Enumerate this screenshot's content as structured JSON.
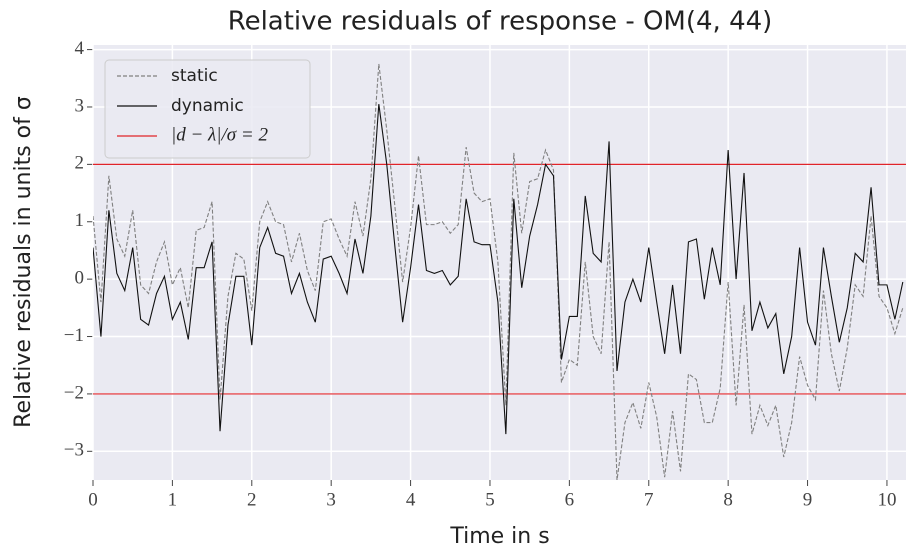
{
  "chart_data": {
    "type": "line",
    "title": "Relative residuals of response - OM(4, 44)",
    "x_label": "Time in s",
    "y_label": "Relative residuals in units of σ",
    "x": [
      0,
      0.1,
      0.2,
      0.3,
      0.4,
      0.5,
      0.6,
      0.7,
      0.8,
      0.9,
      1,
      1.1,
      1.2,
      1.3,
      1.4,
      1.5,
      1.6,
      1.7,
      1.8,
      1.9,
      2,
      2.1,
      2.2,
      2.3,
      2.4,
      2.5,
      2.6,
      2.7,
      2.8,
      2.9,
      3,
      3.1,
      3.2,
      3.3,
      3.4,
      3.5,
      3.6,
      3.7,
      3.8,
      3.9,
      4,
      4.1,
      4.2,
      4.3,
      4.4,
      4.5,
      4.6,
      4.7,
      4.8,
      4.9,
      5,
      5.1,
      5.2,
      5.3,
      5.4,
      5.5,
      5.6,
      5.7,
      5.8,
      5.9,
      6,
      6.1,
      6.2,
      6.3,
      6.4,
      6.5,
      6.6,
      6.7,
      6.8,
      6.9,
      7,
      7.1,
      7.2,
      7.3,
      7.4,
      7.5,
      7.6,
      7.7,
      7.8,
      7.9,
      8,
      8.1,
      8.2,
      8.3,
      8.4,
      8.5,
      8.6,
      8.7,
      8.8,
      8.9,
      9,
      9.1,
      9.2,
      9.3,
      9.4,
      9.5,
      9.6,
      9.7,
      9.8,
      9.9,
      10,
      10.1,
      10.2
    ],
    "series": [
      {
        "name": "static",
        "color": "#808080",
        "dash": true,
        "values": [
          1.1,
          -0.4,
          1.8,
          0.7,
          0.4,
          1.2,
          -0.1,
          -0.25,
          0.3,
          0.65,
          -0.1,
          0.2,
          -0.5,
          0.85,
          0.9,
          1.35,
          -2.1,
          -0.3,
          0.45,
          0.35,
          -0.55,
          1.0,
          1.35,
          1.0,
          0.95,
          0.3,
          0.8,
          0.15,
          -0.2,
          1.0,
          1.05,
          0.7,
          0.4,
          1.35,
          0.75,
          1.75,
          3.75,
          2.6,
          1.3,
          -0.05,
          0.9,
          2.15,
          0.95,
          0.95,
          1.0,
          0.8,
          0.95,
          2.3,
          1.5,
          1.35,
          1.4,
          0.3,
          -2.2,
          2.2,
          0.8,
          1.7,
          1.75,
          2.25,
          1.9,
          -1.8,
          -1.4,
          -1.5,
          0.3,
          -1.0,
          -1.3,
          0.65,
          -3.5,
          -2.5,
          -2.15,
          -2.6,
          -1.8,
          -2.4,
          -3.45,
          -2.3,
          -3.35,
          -1.65,
          -1.75,
          -2.5,
          -2.5,
          -1.9,
          -0.05,
          -2.2,
          -0.45,
          -2.7,
          -2.2,
          -2.55,
          -2.2,
          -3.1,
          -2.5,
          -1.35,
          -1.85,
          -2.1,
          -0.2,
          -1.3,
          -1.95,
          -1.2,
          -0.1,
          -0.3,
          1.1,
          -0.3,
          -0.5,
          -0.95,
          -0.5
        ]
      },
      {
        "name": "dynamic",
        "color": "#111111",
        "dash": false,
        "values": [
          0.55,
          -1.0,
          1.2,
          0.1,
          -0.2,
          0.55,
          -0.7,
          -0.8,
          -0.25,
          0.05,
          -0.7,
          -0.4,
          -1.05,
          0.2,
          0.2,
          0.65,
          -2.65,
          -0.8,
          0.05,
          0.05,
          -1.15,
          0.55,
          0.9,
          0.45,
          0.4,
          -0.25,
          0.1,
          -0.4,
          -0.75,
          0.35,
          0.4,
          0.1,
          -0.25,
          0.7,
          0.1,
          1.1,
          3.05,
          2.0,
          0.6,
          -0.75,
          0.2,
          1.3,
          0.15,
          0.1,
          0.15,
          -0.1,
          0.05,
          1.4,
          0.65,
          0.6,
          0.6,
          -0.4,
          -2.7,
          1.4,
          -0.15,
          0.75,
          1.3,
          2.0,
          1.8,
          -1.4,
          -0.65,
          -0.65,
          1.45,
          0.45,
          0.3,
          2.4,
          -1.6,
          -0.4,
          0.0,
          -0.4,
          0.55,
          -0.4,
          -1.3,
          -0.1,
          -1.3,
          0.65,
          0.7,
          -0.35,
          0.55,
          -0.1,
          2.25,
          0.0,
          1.85,
          -0.9,
          -0.4,
          -0.85,
          -0.6,
          -1.65,
          -1.0,
          0.55,
          -0.75,
          -1.15,
          0.55,
          -0.3,
          -1.1,
          -0.5,
          0.45,
          0.3,
          1.6,
          -0.1,
          -0.1,
          -0.7,
          -0.05
        ]
      }
    ],
    "reference": {
      "name": "|d − λ|/σ = 2",
      "color": "#e0242a",
      "values": [
        2,
        -2
      ]
    },
    "xlim": [
      0,
      10.24
    ],
    "ylim": [
      -3.5,
      4.08
    ],
    "xticks": [
      0,
      1,
      2,
      3,
      4,
      5,
      6,
      7,
      8,
      9,
      10
    ],
    "yticks": [
      {
        "value": -3,
        "label": "−3"
      },
      {
        "value": -2,
        "label": "−2"
      },
      {
        "value": -1,
        "label": "−1"
      },
      0,
      1,
      2,
      3,
      4
    ],
    "grid": true,
    "legend": "upper left"
  }
}
